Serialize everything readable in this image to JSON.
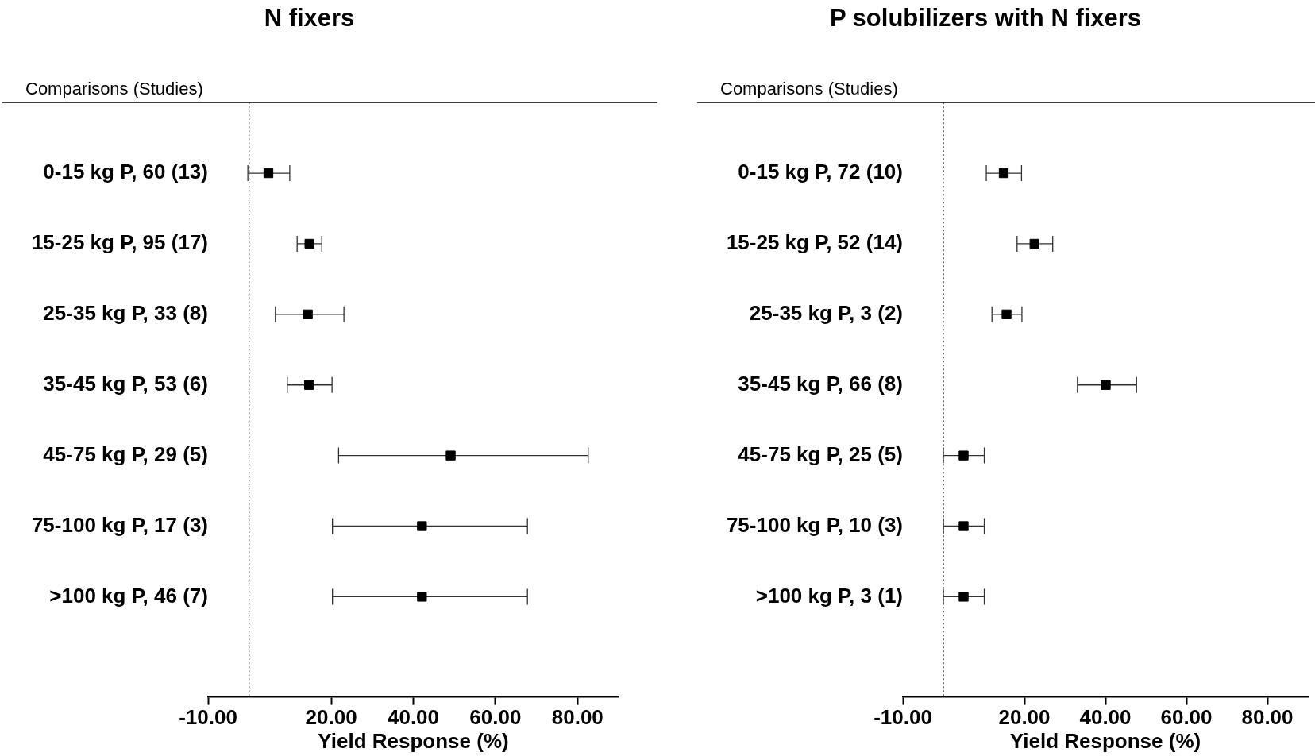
{
  "chart_data": [
    {
      "type": "scatter",
      "title": "N fixers",
      "ylabel": "Comparisons (Studies)",
      "xlabel": "Yield Response (%)",
      "categories": [
        "0-15 kg P, 60 (13)",
        "15-25 kg P, 95 (17)",
        "25-35 kg P, 33 (8)",
        "35-45 kg P, 53 (6)",
        "45-75 kg P, 29 (5)",
        "75-100 kg P, 17 (3)",
        ">100 kg P, 46 (7)"
      ],
      "series": [
        {
          "color": "#000000",
          "values": [
            4.7,
            14.7,
            14.3,
            14.6,
            49.1,
            42.1,
            42.1
          ],
          "errors": [
            [
              -0.3,
              9.9
            ],
            [
              11.7,
              17.7
            ],
            [
              6.4,
              23.1
            ],
            [
              9.3,
              20.2
            ],
            [
              21.8,
              82.6
            ],
            [
              20.3,
              67.8
            ],
            [
              20.3,
              67.8
            ]
          ]
        }
      ],
      "xlim": [
        -10,
        90
      ],
      "xticks": [
        {
          "value": -10,
          "label": "-10.00"
        },
        {
          "value": 20,
          "label": "20.00"
        },
        {
          "value": 40,
          "label": "40.00"
        },
        {
          "value": 60,
          "label": "60.00"
        },
        {
          "value": 80,
          "label": "80.00"
        }
      ],
      "ref_lines": [
        {
          "axis": "x",
          "value": 0,
          "line_style": "dotted",
          "color": "#000000"
        }
      ],
      "marker": "square",
      "orientation": "horizontal",
      "grid": false,
      "legend": false
    },
    {
      "type": "scatter",
      "title": "P solubilizers with N fixers",
      "ylabel": "Comparisons (Studies)",
      "xlabel": "Yield Response (%)",
      "categories": [
        "0-15 kg P, 72 (10)",
        "15-25 kg P, 52 (14)",
        "25-35 kg P, 3 (2)",
        "35-45 kg P, 66 (8)",
        "45-75 kg P, 25 (5)",
        "75-100 kg P, 10 (3)",
        ">100 kg P, 3 (1)"
      ],
      "series": [
        {
          "color": "#000000",
          "values": [
            14.9,
            22.5,
            15.6,
            40.1,
            5.0,
            5.0,
            5.0
          ],
          "errors": [
            [
              10.6,
              19.3
            ],
            [
              18.2,
              27.0
            ],
            [
              12.0,
              19.4
            ],
            [
              33.1,
              47.7
            ],
            [
              0.0,
              10.1
            ],
            [
              0.0,
              10.1
            ],
            [
              0.0,
              10.1
            ]
          ]
        }
      ],
      "xlim": [
        -10,
        90
      ],
      "xticks": [
        {
          "value": -10,
          "label": "-10.00"
        },
        {
          "value": 20,
          "label": "20.00"
        },
        {
          "value": 40,
          "label": "40.00"
        },
        {
          "value": 60,
          "label": "60.00"
        },
        {
          "value": 80,
          "label": "80.00"
        }
      ],
      "ref_lines": [
        {
          "axis": "x",
          "value": 0,
          "line_style": "dotted",
          "color": "#000000"
        }
      ],
      "marker": "square",
      "orientation": "horizontal",
      "grid": false,
      "legend": false
    }
  ]
}
